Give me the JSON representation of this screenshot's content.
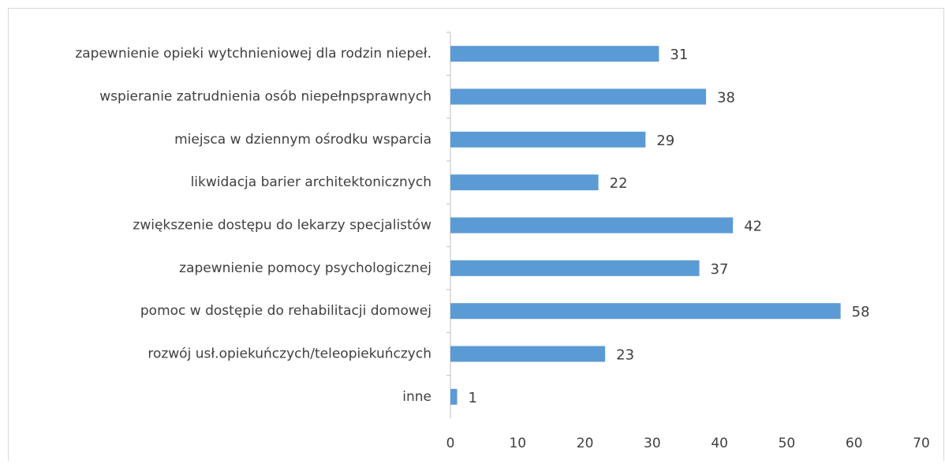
{
  "chart_data": {
    "type": "bar",
    "orientation": "horizontal",
    "categories": [
      "zapewnienie opieki wytchnieniowej dla rodzin niepeł.",
      "wspieranie zatrudnienia osób niepełnpsprawnych",
      "miejsca w dziennym ośrodku wsparcia",
      "likwidacja barier architektonicznych",
      "zwiększenie dostępu do lekarzy specjalistów",
      "zapewnienie pomocy psychologicznej",
      "pomoc w dostępie do rehabilitacji domowej",
      "rozwój usł.opiekuńczych/teleopiekuńczych",
      "inne"
    ],
    "values": [
      31,
      38,
      29,
      22,
      42,
      37,
      58,
      23,
      1
    ],
    "color": "#5b9bd5",
    "xlim": [
      0,
      70
    ],
    "xticks": [
      0,
      10,
      20,
      30,
      40,
      50,
      60,
      70
    ],
    "grid": false
  }
}
